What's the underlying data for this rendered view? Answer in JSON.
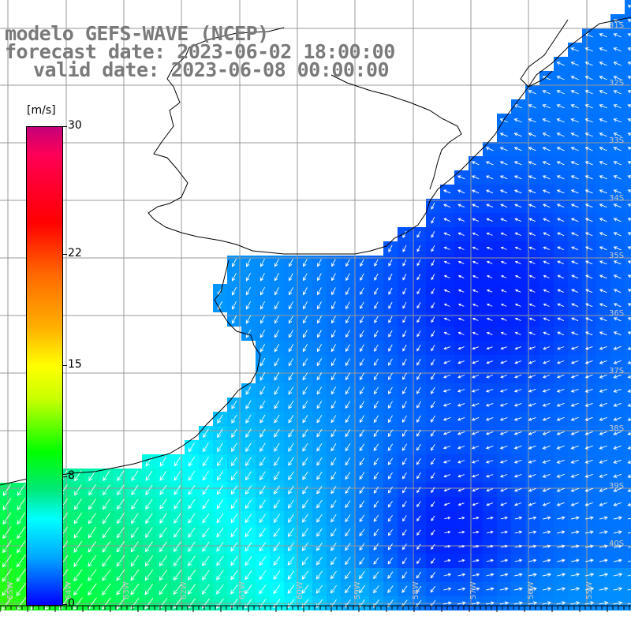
{
  "map": {
    "title_line1": "modelo GEFS-WAVE (NCEP)",
    "title_line2": "forecast date: 2023-06-02 18:00:00",
    "title_line3": "valid date: 2023-06-08 00:00:00",
    "units": "[m/s]",
    "colorbar_ticks": [
      {
        "label": "30",
        "value": 30
      },
      {
        "label": "22",
        "value": 22
      },
      {
        "label": "15",
        "value": 15
      },
      {
        "label": "8",
        "value": 8
      },
      {
        "label": "0",
        "value": 0
      }
    ],
    "lat_labels": [
      "31S",
      "32S",
      "33S",
      "34S",
      "35S",
      "36S",
      "37S",
      "38S",
      "39S",
      "40S"
    ],
    "lon_labels": [
      "65W",
      "64W",
      "63W",
      "62W",
      "61W",
      "60W",
      "59W",
      "58W",
      "57W",
      "56W",
      "55W"
    ],
    "colors": {
      "land": "#ffffff",
      "coast": "#000000",
      "grid": "#999999",
      "title": "#7a7a7a",
      "vector": "#ffffff"
    }
  }
}
